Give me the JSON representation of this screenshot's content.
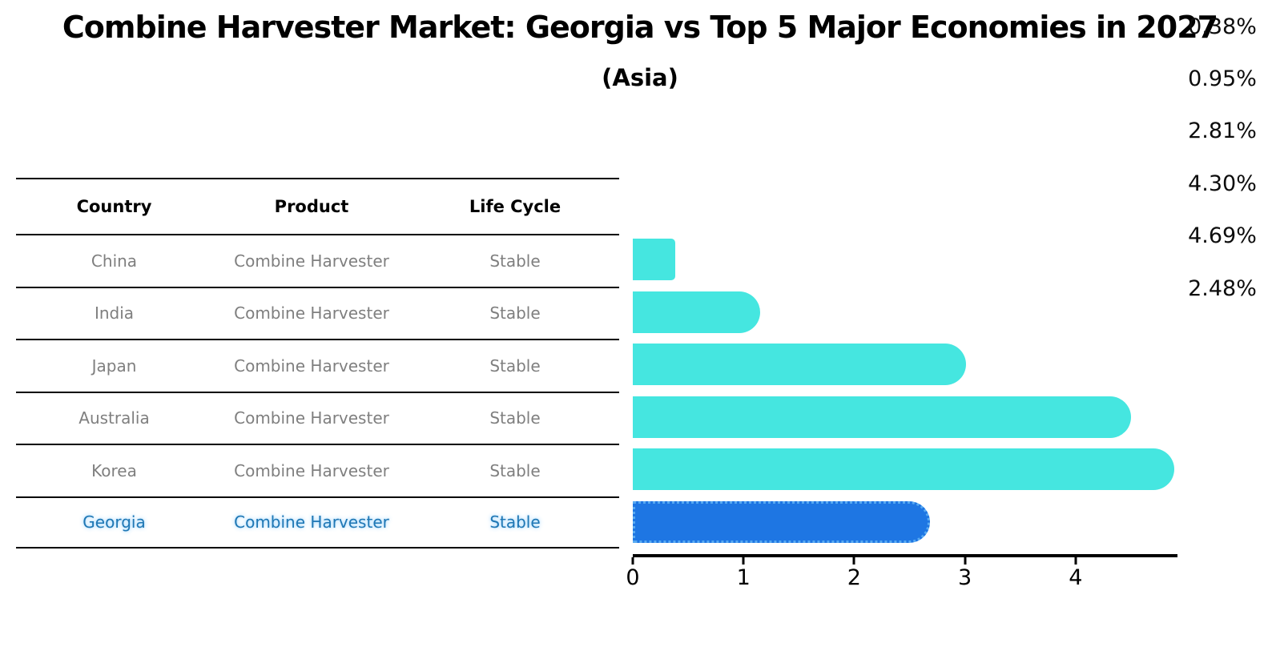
{
  "title": "Combine Harvester Market: Georgia vs Top 5 Major Economies in 2027",
  "subtitle": "(Asia)",
  "table": {
    "headers": {
      "country": "Country",
      "product": "Product",
      "life_cycle": "Life Cycle"
    }
  },
  "rows": [
    {
      "country": "China",
      "product": "Combine Harvester",
      "life_cycle": "Stable",
      "value": 0.38,
      "value_label": "0.38%",
      "highlight": false
    },
    {
      "country": "India",
      "product": "Combine Harvester",
      "life_cycle": "Stable",
      "value": 0.95,
      "value_label": "0.95%",
      "highlight": false
    },
    {
      "country": "Japan",
      "product": "Combine Harvester",
      "life_cycle": "Stable",
      "value": 2.81,
      "value_label": "2.81%",
      "highlight": false
    },
    {
      "country": "Australia",
      "product": "Combine Harvester",
      "life_cycle": "Stable",
      "value": 4.3,
      "value_label": "4.30%",
      "highlight": false
    },
    {
      "country": "Korea",
      "product": "Combine Harvester",
      "life_cycle": "Stable",
      "value": 4.69,
      "value_label": "4.69%",
      "highlight": false
    },
    {
      "country": "Georgia",
      "product": "Combine Harvester",
      "life_cycle": "Stable",
      "value": 2.48,
      "value_label": "2.48%",
      "highlight": true
    }
  ],
  "chart_data": {
    "type": "bar",
    "orientation": "horizontal",
    "title": "Combine Harvester Market: Georgia vs Top 5 Major Economies in 2027 (Asia)",
    "categories": [
      "China",
      "India",
      "Japan",
      "Australia",
      "Korea",
      "Georgia"
    ],
    "values": [
      0.38,
      0.95,
      2.81,
      4.3,
      4.69,
      2.48
    ],
    "value_labels": [
      "0.38%",
      "0.95%",
      "2.81%",
      "4.30%",
      "4.69%",
      "2.48%"
    ],
    "xlabel": "",
    "ylabel": "",
    "xlim": [
      0,
      4.92
    ],
    "xticks": [
      0,
      1,
      2,
      3,
      4
    ],
    "grid": false,
    "legend": false,
    "bar_color": "#45E6E0",
    "highlight_color": "#1E76E3",
    "highlight_index": 5,
    "highlight_text_color": "#1f77b4"
  }
}
